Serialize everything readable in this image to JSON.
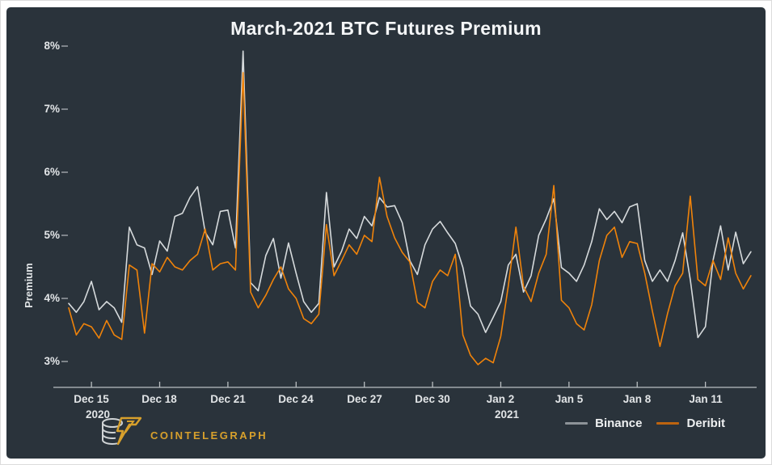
{
  "title": "March-2021 BTC Futures Premium",
  "colors": {
    "background": "#2a333b",
    "frame": "#ffffff",
    "axis": "#b9bec1",
    "tick_mark": "#9aa0a4",
    "title_text": "#f4f6f7",
    "tick_text": "#e2e5e7",
    "binance_line": "#d6dadc",
    "deribit_line": "#f0830a",
    "brand_gold": "#d7a02c"
  },
  "y_axis": {
    "label": "Premium",
    "ticks": [
      "8%",
      "7%",
      "6%",
      "5%",
      "4%",
      "3%"
    ]
  },
  "x_axis": {
    "ticks": [
      {
        "label": "Dec 15",
        "sub": "2020"
      },
      {
        "label": "Dec 18"
      },
      {
        "label": "Dec 21"
      },
      {
        "label": "Dec 24"
      },
      {
        "label": "Dec 27"
      },
      {
        "label": "Dec 30"
      },
      {
        "label": "Jan 2",
        "sub": "2021"
      },
      {
        "label": "Jan 5"
      },
      {
        "label": "Jan 8"
      },
      {
        "label": "Jan 11"
      }
    ]
  },
  "legend": {
    "items": [
      {
        "label": "Binance"
      },
      {
        "label": "Deribit"
      }
    ]
  },
  "logo": {
    "brand": "COINTELEGRAPH",
    "color": "#d7a02c",
    "icon": "cointelegraph-coin-bolt"
  },
  "chart_data": {
    "type": "line",
    "title": "March-2021 BTC Futures Premium",
    "xlabel": "",
    "ylabel": "Premium",
    "ylim": [
      2.6,
      8.2
    ],
    "y_ticks_pct": [
      3,
      4,
      5,
      6,
      7,
      8
    ],
    "grid": false,
    "legend_position": "bottom-right",
    "x_start_date": "2020-12-14",
    "x_end_date": "2021-01-13",
    "points_per_day": 3,
    "x_tick_days": [
      1,
      4,
      7,
      10,
      13,
      16,
      19,
      22,
      25,
      28
    ],
    "x_tick_labels": [
      "Dec 15",
      "Dec 18",
      "Dec 21",
      "Dec 24",
      "Dec 27",
      "Dec 30",
      "Jan 2",
      "Jan 5",
      "Jan 8",
      "Jan 11"
    ],
    "series": [
      {
        "name": "Binance",
        "color": "#d6dadc",
        "legend_color": "#8d9398",
        "values": [
          3.92,
          3.78,
          3.95,
          4.27,
          3.82,
          3.95,
          3.85,
          3.62,
          5.13,
          4.85,
          4.8,
          4.38,
          4.91,
          4.75,
          5.3,
          5.35,
          5.6,
          5.77,
          5.05,
          4.85,
          5.38,
          5.4,
          4.8,
          7.92,
          4.25,
          4.12,
          4.68,
          4.95,
          4.32,
          4.88,
          4.4,
          3.95,
          3.78,
          3.92,
          5.68,
          4.5,
          4.75,
          5.1,
          4.95,
          5.3,
          5.15,
          5.6,
          5.45,
          5.47,
          5.2,
          4.6,
          4.38,
          4.85,
          5.1,
          5.22,
          5.04,
          4.87,
          4.49,
          3.88,
          3.75,
          3.46,
          3.7,
          3.95,
          4.53,
          4.7,
          4.1,
          4.36,
          5.0,
          5.26,
          5.58,
          4.49,
          4.4,
          4.27,
          4.53,
          4.9,
          5.42,
          5.25,
          5.38,
          5.2,
          5.45,
          5.5,
          4.6,
          4.27,
          4.45,
          4.27,
          4.6,
          5.04,
          4.3,
          3.38,
          3.55,
          4.6,
          5.15,
          4.45,
          5.05,
          4.55,
          4.74
        ]
      },
      {
        "name": "Deribit",
        "color": "#f0830a",
        "legend_color": "#bd640f",
        "values": [
          3.85,
          3.42,
          3.6,
          3.55,
          3.37,
          3.65,
          3.42,
          3.35,
          4.53,
          4.45,
          3.45,
          4.55,
          4.42,
          4.65,
          4.5,
          4.45,
          4.6,
          4.7,
          5.1,
          4.45,
          4.55,
          4.58,
          4.45,
          7.58,
          4.1,
          3.85,
          4.05,
          4.3,
          4.5,
          4.15,
          4.0,
          3.68,
          3.6,
          3.75,
          5.17,
          4.36,
          4.6,
          4.85,
          4.7,
          5.0,
          4.9,
          5.92,
          5.3,
          4.96,
          4.73,
          4.58,
          3.94,
          3.85,
          4.27,
          4.45,
          4.36,
          4.7,
          3.42,
          3.1,
          2.95,
          3.05,
          2.98,
          3.4,
          4.2,
          5.13,
          4.19,
          3.95,
          4.4,
          4.7,
          5.79,
          3.97,
          3.85,
          3.6,
          3.5,
          3.9,
          4.6,
          5.0,
          5.13,
          4.65,
          4.9,
          4.87,
          4.4,
          3.8,
          3.24,
          3.76,
          4.2,
          4.4,
          5.62,
          4.3,
          4.2,
          4.6,
          4.3,
          4.96,
          4.4,
          4.15,
          4.36
        ]
      }
    ]
  }
}
